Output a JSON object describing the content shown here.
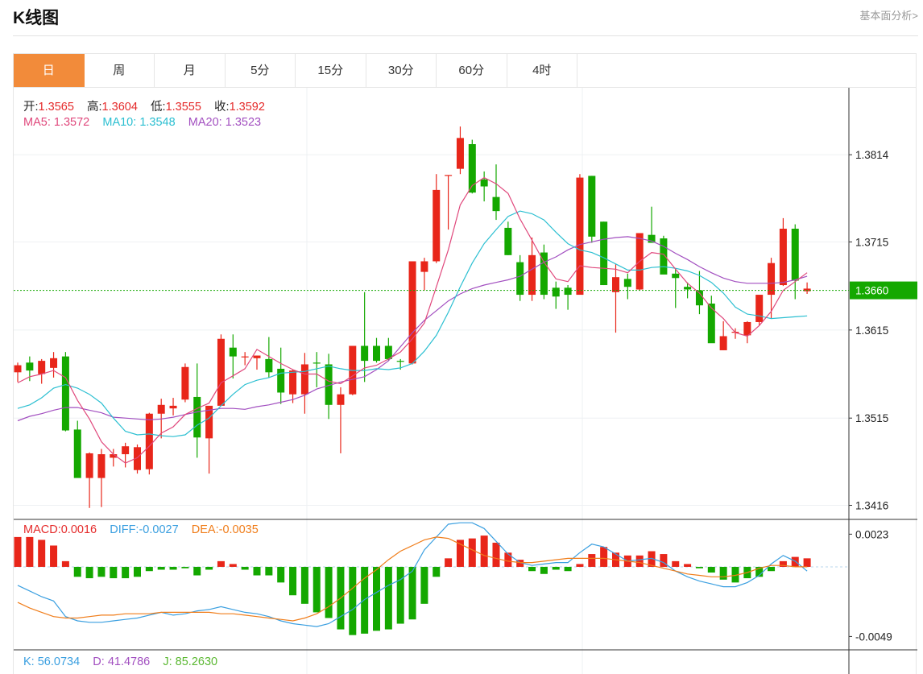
{
  "header": {
    "title": "K线图",
    "link": "基本面分析>"
  },
  "tabs": [
    {
      "label": "日",
      "active": true
    },
    {
      "label": "周",
      "active": false
    },
    {
      "label": "月",
      "active": false
    },
    {
      "label": "5分",
      "active": false
    },
    {
      "label": "15分",
      "active": false
    },
    {
      "label": "30分",
      "active": false
    },
    {
      "label": "60分",
      "active": false
    },
    {
      "label": "4时",
      "active": false
    }
  ],
  "ohlc_info": {
    "open_label": "开:",
    "open": "1.3565",
    "high_label": "高:",
    "high": "1.3604",
    "low_label": "低:",
    "low": "1.3555",
    "close_label": "收:",
    "close": "1.3592"
  },
  "ma_info": {
    "ma5_label": "MA5:",
    "ma5": "1.3572",
    "ma10_label": "MA10:",
    "ma10": "1.3548",
    "ma20_label": "MA20:",
    "ma20": "1.3523"
  },
  "macd_info": {
    "macd_label": "MACD:",
    "macd": "0.0016",
    "diff_label": "DIFF:",
    "diff": "-0.0027",
    "dea_label": "DEA:",
    "dea": "-0.0035"
  },
  "kdj_info": {
    "k_label": "K:",
    "k": "56.0734",
    "d_label": "D:",
    "d": "41.4786",
    "j_label": "J:",
    "j": "85.2630"
  },
  "colors": {
    "up": "#e8261a",
    "down": "#14a800",
    "ma5": "#e0487c",
    "ma10": "#2bbfd1",
    "ma20": "#a24fc0",
    "diff": "#3a9fe0",
    "dea": "#f07d1a",
    "current_price": "#14a800"
  },
  "chart_data": {
    "type": "candlestick",
    "price_axis": {
      "ticks": [
        "1.3814",
        "1.3715",
        "1.3615",
        "1.3515",
        "1.3416"
      ],
      "tick_values": [
        1.3814,
        1.3715,
        1.3615,
        1.3515,
        1.3416
      ],
      "range": [
        1.34,
        1.389
      ]
    },
    "current_price": {
      "label": "1.3660",
      "value": 1.366
    },
    "candles": [
      [
        1.3567,
        1.3578,
        1.3556,
        1.3575
      ],
      [
        1.3578,
        1.3585,
        1.3557,
        1.3569
      ],
      [
        1.3565,
        1.3582,
        1.3554,
        1.358
      ],
      [
        1.3572,
        1.359,
        1.3561,
        1.3583
      ],
      [
        1.3585,
        1.359,
        1.35,
        1.3501
      ],
      [
        1.3502,
        1.3512,
        1.3448,
        1.3447
      ],
      [
        1.3447,
        1.3476,
        1.3413,
        1.3475
      ],
      [
        1.3447,
        1.348,
        1.3414,
        1.3474
      ],
      [
        1.347,
        1.348,
        1.346,
        1.3474
      ],
      [
        1.3474,
        1.3487,
        1.3459,
        1.3483
      ],
      [
        1.3456,
        1.3485,
        1.3452,
        1.3482
      ],
      [
        1.3457,
        1.3521,
        1.3451,
        1.352
      ],
      [
        1.352,
        1.3537,
        1.3492,
        1.353
      ],
      [
        1.3526,
        1.3538,
        1.3518,
        1.3529
      ],
      [
        1.3536,
        1.3577,
        1.3533,
        1.3573
      ],
      [
        1.3539,
        1.3577,
        1.347,
        1.3493
      ],
      [
        1.3492,
        1.3527,
        1.3452,
        1.3529
      ],
      [
        1.3529,
        1.361,
        1.3529,
        1.3605
      ],
      [
        1.3595,
        1.361,
        1.356,
        1.3585
      ],
      [
        1.3585,
        1.359,
        1.3575,
        1.3585
      ],
      [
        1.3583,
        1.3586,
        1.357,
        1.3586
      ],
      [
        1.3582,
        1.3607,
        1.3561,
        1.3567
      ],
      [
        1.3571,
        1.3595,
        1.3531,
        1.3544
      ],
      [
        1.3542,
        1.357,
        1.3532,
        1.3569
      ],
      [
        1.3542,
        1.3589,
        1.352,
        1.3576
      ],
      [
        1.3578,
        1.359,
        1.355,
        1.3577
      ],
      [
        1.3576,
        1.3588,
        1.3514,
        1.353
      ],
      [
        1.353,
        1.355,
        1.3475,
        1.3542
      ],
      [
        1.3542,
        1.3597,
        1.3541,
        1.3597
      ],
      [
        1.3597,
        1.3658,
        1.3556,
        1.358
      ],
      [
        1.3597,
        1.3606,
        1.3578,
        1.358
      ],
      [
        1.3597,
        1.3606,
        1.358,
        1.3582
      ],
      [
        1.358,
        1.3582,
        1.357,
        1.3579
      ],
      [
        1.3577,
        1.3693,
        1.3576,
        1.3693
      ],
      [
        1.3681,
        1.3697,
        1.366,
        1.3693
      ],
      [
        1.3693,
        1.3792,
        1.3691,
        1.3774
      ],
      [
        1.379,
        1.379,
        1.3729,
        1.3791
      ],
      [
        1.3798,
        1.3846,
        1.3792,
        1.3833
      ],
      [
        1.3826,
        1.3831,
        1.377,
        1.3771
      ],
      [
        1.3786,
        1.3795,
        1.3761,
        1.3778
      ],
      [
        1.3766,
        1.3803,
        1.374,
        1.375
      ],
      [
        1.3731,
        1.3738,
        1.37,
        1.37
      ],
      [
        1.3692,
        1.37,
        1.3648,
        1.3655
      ],
      [
        1.3655,
        1.372,
        1.3648,
        1.37
      ],
      [
        1.3703,
        1.3712,
        1.365,
        1.3655
      ],
      [
        1.3663,
        1.367,
        1.3639,
        1.3653
      ],
      [
        1.3663,
        1.3666,
        1.3638,
        1.3655
      ],
      [
        1.3655,
        1.3792,
        1.3655,
        1.3788
      ],
      [
        1.379,
        1.379,
        1.3714,
        1.3721
      ],
      [
        1.3738,
        1.3738,
        1.3666,
        1.3666
      ],
      [
        1.3658,
        1.369,
        1.3612,
        1.3675
      ],
      [
        1.3673,
        1.3679,
        1.365,
        1.3664
      ],
      [
        1.3661,
        1.3725,
        1.366,
        1.3725
      ],
      [
        1.3723,
        1.3755,
        1.3715,
        1.3714
      ],
      [
        1.3719,
        1.3722,
        1.368,
        1.3678
      ],
      [
        1.3679,
        1.3685,
        1.364,
        1.3674
      ],
      [
        1.3664,
        1.3669,
        1.3651,
        1.3661
      ],
      [
        1.366,
        1.3682,
        1.3633,
        1.3643
      ],
      [
        1.3645,
        1.3654,
        1.3601,
        1.36
      ],
      [
        1.3592,
        1.3625,
        1.3592,
        1.3608
      ],
      [
        1.3612,
        1.3617,
        1.3605,
        1.3613
      ],
      [
        1.3609,
        1.3625,
        1.36,
        1.3624
      ],
      [
        1.3624,
        1.3652,
        1.362,
        1.3655
      ],
      [
        1.3655,
        1.3697,
        1.3628,
        1.3691
      ],
      [
        1.3666,
        1.3742,
        1.3665,
        1.373
      ],
      [
        1.373,
        1.3735,
        1.365,
        1.3671
      ],
      [
        1.3659,
        1.3669,
        1.3656,
        1.3662
      ]
    ],
    "ma5": [
      1.3555,
      1.3562,
      1.3565,
      1.3569,
      1.3561,
      1.3535,
      1.3514,
      1.3488,
      1.3474,
      1.3464,
      1.347,
      1.3483,
      1.3498,
      1.3505,
      1.3519,
      1.3526,
      1.3532,
      1.3555,
      1.3563,
      1.3571,
      1.3593,
      1.3585,
      1.3577,
      1.357,
      1.3565,
      1.3565,
      1.3557,
      1.3554,
      1.3563,
      1.3572,
      1.3575,
      1.3582,
      1.359,
      1.3605,
      1.3623,
      1.3664,
      1.3706,
      1.3757,
      1.3779,
      1.3788,
      1.3781,
      1.377,
      1.3741,
      1.3717,
      1.3692,
      1.3673,
      1.367,
      1.3688,
      1.3686,
      1.3685,
      1.3684,
      1.368,
      1.3693,
      1.3703,
      1.3701,
      1.3684,
      1.3668,
      1.3657,
      1.364,
      1.3628,
      1.3612,
      1.3608,
      1.362,
      1.3636,
      1.366,
      1.367,
      1.368
    ],
    "ma10": [
      1.3526,
      1.353,
      1.3538,
      1.3549,
      1.3553,
      1.3549,
      1.3542,
      1.3532,
      1.3515,
      1.35,
      1.3496,
      1.3497,
      1.3495,
      1.3494,
      1.3496,
      1.3507,
      1.3515,
      1.3529,
      1.3542,
      1.3553,
      1.3558,
      1.3561,
      1.3566,
      1.3567,
      1.3568,
      1.3571,
      1.3574,
      1.3571,
      1.3569,
      1.3569,
      1.3571,
      1.357,
      1.3572,
      1.3577,
      1.3591,
      1.3609,
      1.3635,
      1.3664,
      1.3691,
      1.3713,
      1.3729,
      1.3744,
      1.375,
      1.3747,
      1.374,
      1.3726,
      1.3713,
      1.3706,
      1.3703,
      1.3697,
      1.369,
      1.3683,
      1.3683,
      1.3686,
      1.3687,
      1.3685,
      1.3682,
      1.3677,
      1.3669,
      1.3657,
      1.3641,
      1.3633,
      1.3631,
      1.3628,
      1.3629,
      1.363,
      1.3631
    ],
    "ma20": [
      1.3512,
      1.3517,
      1.352,
      1.3524,
      1.3527,
      1.3527,
      1.3524,
      1.3521,
      1.3516,
      1.3515,
      1.3514,
      1.3513,
      1.3514,
      1.3516,
      1.3519,
      1.3522,
      1.3524,
      1.3526,
      1.3526,
      1.3525,
      1.3528,
      1.353,
      1.3533,
      1.3536,
      1.3541,
      1.3548,
      1.3552,
      1.3556,
      1.3559,
      1.3562,
      1.357,
      1.358,
      1.3596,
      1.3612,
      1.3626,
      1.3637,
      1.3648,
      1.3656,
      1.3662,
      1.3666,
      1.3669,
      1.3672,
      1.3676,
      1.3684,
      1.3692,
      1.3698,
      1.3706,
      1.3712,
      1.3715,
      1.3718,
      1.372,
      1.3721,
      1.3719,
      1.3716,
      1.371,
      1.3702,
      1.3695,
      1.3687,
      1.368,
      1.3674,
      1.367,
      1.3668,
      1.3668,
      1.3668,
      1.3669,
      1.3672,
      1.3676
    ],
    "macd_axis": {
      "ticks": [
        "0.0023",
        "-0.0049"
      ],
      "tick_values": [
        0.0023,
        -0.0049
      ]
    },
    "macd_hist": [
      0.0021,
      0.0021,
      0.0019,
      0.0015,
      0.0004,
      -0.0007,
      -0.0008,
      -0.0007,
      -0.0008,
      -0.0008,
      -0.0007,
      -0.0003,
      -0.0002,
      -0.0002,
      -0.0001,
      -0.0006,
      -0.0002,
      0.0004,
      0.0002,
      -0.0002,
      -0.0006,
      -0.0006,
      -0.0011,
      -0.002,
      -0.0026,
      -0.0032,
      -0.0036,
      -0.0044,
      -0.0048,
      -0.0047,
      -0.0045,
      -0.0044,
      -0.004,
      -0.0037,
      -0.0026,
      -0.0007,
      0.0006,
      0.0019,
      0.002,
      0.0022,
      0.0017,
      0.001,
      0.0005,
      -0.0003,
      -0.0005,
      -0.0002,
      -0.0003,
      0.0002,
      0.0009,
      0.0014,
      0.001,
      0.0008,
      0.0008,
      0.0011,
      0.0009,
      0.0004,
      0.0002,
      -0.0001,
      -0.0004,
      -0.0009,
      -0.0011,
      -0.0008,
      -0.0007,
      -0.0003,
      0.0004,
      0.0007,
      0.0006
    ],
    "diff": [
      -0.0013,
      -0.0017,
      -0.0021,
      -0.0024,
      -0.0035,
      -0.0038,
      -0.0039,
      -0.0039,
      -0.0038,
      -0.0037,
      -0.0036,
      -0.0034,
      -0.0032,
      -0.0034,
      -0.0033,
      -0.0031,
      -0.003,
      -0.0028,
      -0.003,
      -0.0032,
      -0.0033,
      -0.0035,
      -0.0038,
      -0.004,
      -0.0041,
      -0.0042,
      -0.004,
      -0.0035,
      -0.003,
      -0.0023,
      -0.0018,
      -0.0013,
      -0.0009,
      -0.0003,
      0.0012,
      0.0021,
      0.003,
      0.0031,
      0.0031,
      0.0027,
      0.0018,
      0.0009,
      0.0003,
      0.0001,
      0.0002,
      0.0003,
      0.0003,
      0.001,
      0.0016,
      0.0014,
      0.0009,
      0.0004,
      0.0005,
      0.0006,
      0.0003,
      -0.0003,
      -0.0007,
      -0.001,
      -0.0012,
      -0.0014,
      -0.0014,
      -0.0011,
      -0.0006,
      0.0002,
      0.0008,
      0.0004,
      -0.0003
    ],
    "dea": [
      -0.0025,
      -0.0029,
      -0.0032,
      -0.0035,
      -0.0036,
      -0.0036,
      -0.0035,
      -0.0034,
      -0.0034,
      -0.0033,
      -0.0033,
      -0.0033,
      -0.0032,
      -0.0032,
      -0.0032,
      -0.0032,
      -0.0032,
      -0.0033,
      -0.0033,
      -0.0034,
      -0.0035,
      -0.0036,
      -0.0037,
      -0.0038,
      -0.0036,
      -0.0033,
      -0.0028,
      -0.0022,
      -0.0015,
      -0.0008,
      -0.0002,
      0.0005,
      0.0011,
      0.0015,
      0.0019,
      0.0021,
      0.002,
      0.0016,
      0.0012,
      0.0008,
      0.0006,
      0.0004,
      0.0003,
      0.0003,
      0.0004,
      0.0005,
      0.0006,
      0.0006,
      0.0006,
      0.0006,
      0.0005,
      0.0004,
      0.0003,
      0.0001,
      -0.0001,
      -0.0003,
      -0.0005,
      -0.0006,
      -0.0007,
      -0.0007,
      -0.0006,
      -0.0004,
      -0.0001,
      0.0001,
      0.0001,
      0.0,
      0.0
    ]
  }
}
